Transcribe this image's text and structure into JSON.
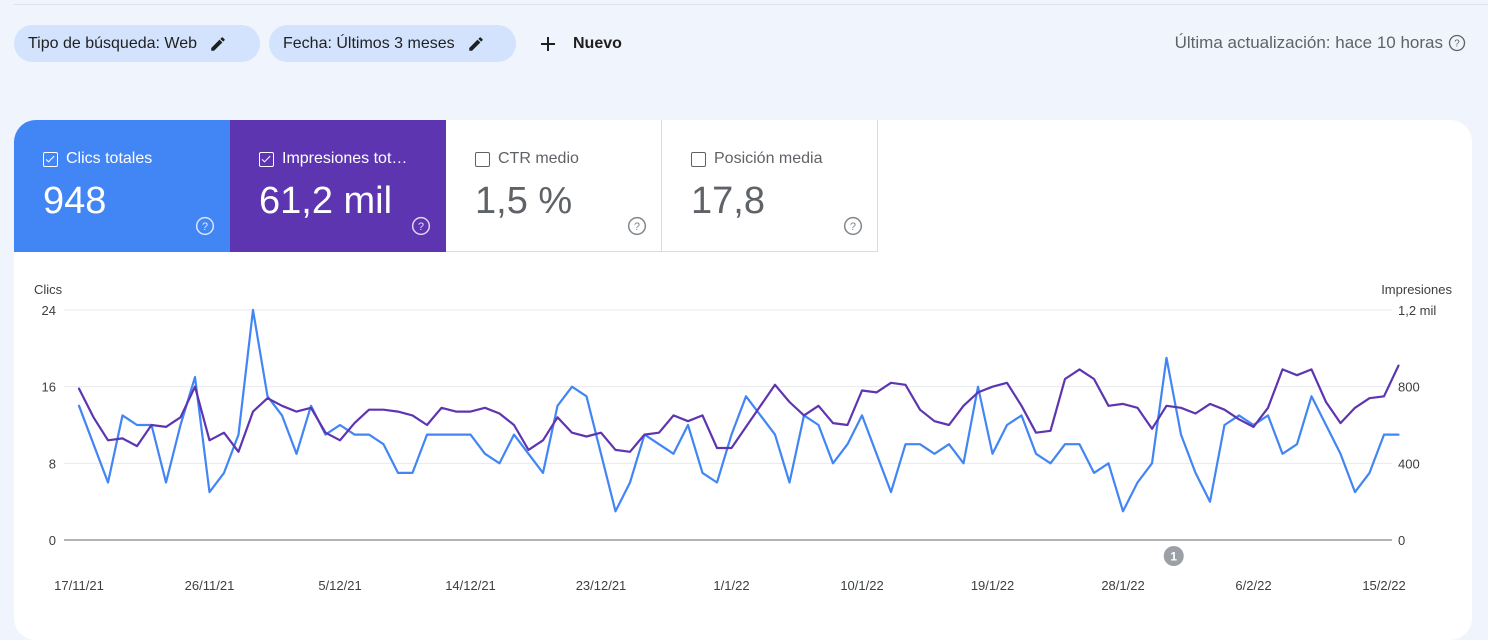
{
  "filters": {
    "search_type": "Tipo de búsqueda: Web",
    "date": "Fecha: Últimos 3 meses",
    "new_label": "Nuevo",
    "last_update": "Última actualización: hace 10 horas"
  },
  "metrics": {
    "clicks": {
      "label": "Clics totales",
      "value": "948",
      "checked": true,
      "color": "#4285f4"
    },
    "impressions": {
      "label": "Impresiones totales",
      "value": "61,2 mil",
      "checked": true,
      "color": "#5e35b1"
    },
    "ctr": {
      "label": "CTR medio",
      "value": "1,5 %",
      "checked": false
    },
    "position": {
      "label": "Posición media",
      "value": "17,8",
      "checked": false
    }
  },
  "chart_data": {
    "type": "line",
    "left_axis_title": "Clics",
    "right_axis_title": "Impresiones",
    "left_ticks": [
      "24",
      "16",
      "8",
      "0"
    ],
    "right_ticks": [
      "1,2 mil",
      "800",
      "400",
      "0"
    ],
    "ylim_left": [
      0,
      24
    ],
    "ylim_right": [
      0,
      1200
    ],
    "x_tick_labels": [
      "17/11/21",
      "26/11/21",
      "5/12/21",
      "14/12/21",
      "23/12/21",
      "1/1/22",
      "10/1/22",
      "19/1/22",
      "28/1/22",
      "6/2/22",
      "15/2/22"
    ],
    "x_tick_index": [
      0,
      9,
      18,
      27,
      36,
      45,
      54,
      63,
      72,
      81,
      90
    ],
    "annotation": {
      "label": "1",
      "day_index": 75.5
    },
    "grid": true,
    "series": [
      {
        "name": "Clics",
        "color": "#4285f4",
        "axis": "left",
        "values": [
          14,
          10,
          6,
          13,
          12,
          12,
          6,
          12,
          17,
          5,
          7,
          11,
          24,
          15,
          13,
          9,
          14,
          11,
          12,
          11,
          11,
          10,
          7,
          7,
          11,
          11,
          11,
          11,
          9,
          8,
          11,
          9,
          7,
          14,
          16,
          15,
          9,
          3,
          6,
          11,
          10,
          9,
          12,
          7,
          6,
          11,
          15,
          13,
          11,
          6,
          13,
          12,
          8,
          10,
          13,
          9,
          5,
          10,
          10,
          9,
          10,
          8,
          16,
          9,
          12,
          13,
          9,
          8,
          10,
          10,
          7,
          8,
          3,
          6,
          8,
          19,
          11,
          7,
          4,
          12,
          13,
          12,
          13,
          9,
          10,
          15,
          12,
          9,
          5,
          7,
          11,
          11
        ]
      },
      {
        "name": "Impresiones",
        "color": "#5e35b1",
        "axis": "right",
        "values": [
          790,
          640,
          520,
          530,
          490,
          600,
          590,
          640,
          800,
          520,
          560,
          460,
          670,
          740,
          700,
          670,
          690,
          560,
          520,
          610,
          680,
          680,
          670,
          650,
          600,
          690,
          670,
          670,
          690,
          660,
          600,
          470,
          520,
          640,
          560,
          540,
          560,
          470,
          460,
          550,
          560,
          650,
          620,
          650,
          480,
          480,
          590,
          700,
          810,
          720,
          650,
          700,
          610,
          600,
          780,
          770,
          820,
          810,
          680,
          620,
          600,
          700,
          770,
          800,
          820,
          700,
          560,
          570,
          840,
          890,
          840,
          700,
          710,
          690,
          580,
          700,
          690,
          660,
          710,
          680,
          630,
          590,
          690,
          890,
          860,
          890,
          720,
          610,
          690,
          740,
          750,
          910
        ]
      }
    ]
  }
}
